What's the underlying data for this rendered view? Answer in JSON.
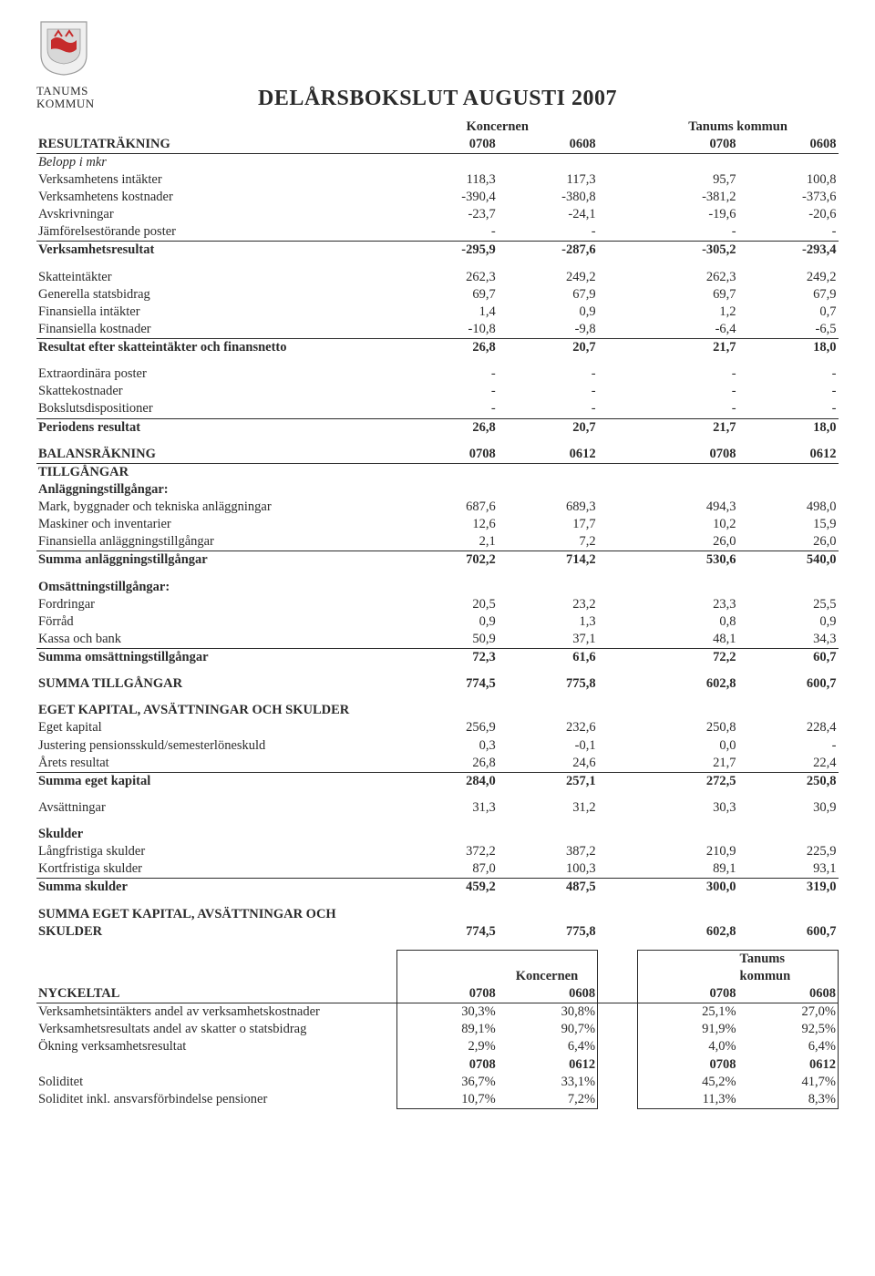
{
  "org": {
    "line1": "TANUMS",
    "line2": "KOMMUN"
  },
  "title": "DELÅRSBOKSLUT AUGUSTI 2007",
  "group_headers": {
    "left": "Koncernen",
    "right": "Tanums kommun"
  },
  "resultat": {
    "heading": "RESULTATRÄKNING",
    "periods": [
      "0708",
      "0608",
      "0708",
      "0608"
    ],
    "sub": "Belopp i mkr",
    "rows": [
      {
        "l": "Verksamhetens intäkter",
        "v": [
          "118,3",
          "117,3",
          "95,7",
          "100,8"
        ]
      },
      {
        "l": "Verksamhetens kostnader",
        "v": [
          "-390,4",
          "-380,8",
          "-381,2",
          "-373,6"
        ]
      },
      {
        "l": "Avskrivningar",
        "v": [
          "-23,7",
          "-24,1",
          "-19,6",
          "-20,6"
        ]
      },
      {
        "l": "Jämförelsestörande poster",
        "v": [
          "-",
          "-",
          "-",
          "-"
        ],
        "uline": true
      },
      {
        "l": "Verksamhetsresultat",
        "v": [
          "-295,9",
          "-287,6",
          "-305,2",
          "-293,4"
        ],
        "bold": true
      }
    ],
    "rows2": [
      {
        "l": "Skatteintäkter",
        "v": [
          "262,3",
          "249,2",
          "262,3",
          "249,2"
        ]
      },
      {
        "l": "Generella statsbidrag",
        "v": [
          "69,7",
          "67,9",
          "69,7",
          "67,9"
        ]
      },
      {
        "l": "Finansiella intäkter",
        "v": [
          "1,4",
          "0,9",
          "1,2",
          "0,7"
        ]
      },
      {
        "l": "Finansiella kostnader",
        "v": [
          "-10,8",
          "-9,8",
          "-6,4",
          "-6,5"
        ],
        "uline": true
      },
      {
        "l": "Resultat efter skatteintäkter och finansnetto",
        "v": [
          "26,8",
          "20,7",
          "21,7",
          "18,0"
        ],
        "bold": true
      }
    ],
    "rows3": [
      {
        "l": "Extraordinära poster",
        "v": [
          "-",
          "-",
          "-",
          "-"
        ]
      },
      {
        "l": "Skattekostnader",
        "v": [
          "-",
          "-",
          "-",
          "-"
        ]
      },
      {
        "l": "Bokslutsdispositioner",
        "v": [
          "-",
          "-",
          "-",
          "-"
        ],
        "uline": true
      },
      {
        "l": "Periodens resultat",
        "v": [
          "26,8",
          "20,7",
          "21,7",
          "18,0"
        ],
        "bold": true
      }
    ]
  },
  "balans": {
    "heading": "BALANSRÄKNING",
    "periods": [
      "0708",
      "0612",
      "0708",
      "0612"
    ],
    "assets_heading": "TILLGÅNGAR",
    "anl_heading": "Anläggningstillgångar:",
    "anl": [
      {
        "l": "Mark, byggnader och tekniska anläggningar",
        "v": [
          "687,6",
          "689,3",
          "494,3",
          "498,0"
        ]
      },
      {
        "l": "Maskiner och inventarier",
        "v": [
          "12,6",
          "17,7",
          "10,2",
          "15,9"
        ]
      },
      {
        "l": "Finansiella anläggningstillgångar",
        "v": [
          "2,1",
          "7,2",
          "26,0",
          "26,0"
        ],
        "uline": true
      },
      {
        "l": "Summa anläggningstillgångar",
        "v": [
          "702,2",
          "714,2",
          "530,6",
          "540,0"
        ],
        "bold": true
      }
    ],
    "oms_heading": "Omsättningstillgångar:",
    "oms": [
      {
        "l": "Fordringar",
        "v": [
          "20,5",
          "23,2",
          "23,3",
          "25,5"
        ]
      },
      {
        "l": "Förråd",
        "v": [
          "0,9",
          "1,3",
          "0,8",
          "0,9"
        ]
      },
      {
        "l": "Kassa och bank",
        "v": [
          "50,9",
          "37,1",
          "48,1",
          "34,3"
        ],
        "uline": true
      },
      {
        "l": "Summa omsättningstillgångar",
        "v": [
          "72,3",
          "61,6",
          "72,2",
          "60,7"
        ],
        "bold": true
      }
    ],
    "total_assets": {
      "l": "SUMMA TILLGÅNGAR",
      "v": [
        "774,5",
        "775,8",
        "602,8",
        "600,7"
      ],
      "bold": true
    },
    "ek_heading": "EGET KAPITAL, AVSÄTTNINGAR OCH SKULDER",
    "ek": [
      {
        "l": "Eget kapital",
        "v": [
          "256,9",
          "232,6",
          "250,8",
          "228,4"
        ]
      },
      {
        "l": "Justering pensionsskuld/semesterlöneskuld",
        "v": [
          "0,3",
          "-0,1",
          "0,0",
          "-"
        ]
      },
      {
        "l": "Årets resultat",
        "v": [
          "26,8",
          "24,6",
          "21,7",
          "22,4"
        ],
        "uline": true
      },
      {
        "l": "Summa eget kapital",
        "v": [
          "284,0",
          "257,1",
          "272,5",
          "250,8"
        ],
        "bold": true
      }
    ],
    "avs": {
      "l": "Avsättningar",
      "v": [
        "31,3",
        "31,2",
        "30,3",
        "30,9"
      ]
    },
    "sk_heading": "Skulder",
    "sk": [
      {
        "l": "Långfristiga skulder",
        "v": [
          "372,2",
          "387,2",
          "210,9",
          "225,9"
        ]
      },
      {
        "l": "Kortfristiga skulder",
        "v": [
          "87,0",
          "100,3",
          "89,1",
          "93,1"
        ],
        "uline": true
      },
      {
        "l": "Summa skulder",
        "v": [
          "459,2",
          "487,5",
          "300,0",
          "319,0"
        ],
        "bold": true
      }
    ],
    "total_ek": {
      "l": "SUMMA EGET KAPITAL, AVSÄTTNINGAR OCH SKULDER",
      "v": [
        "774,5",
        "775,8",
        "602,8",
        "600,7"
      ],
      "bold": true
    }
  },
  "nyckel": {
    "heading": "NYCKELTAL",
    "group_headers": {
      "left": "Koncernen",
      "right": "Tanums kommun"
    },
    "periods": [
      "0708",
      "0608",
      "0708",
      "0608"
    ],
    "rows": [
      {
        "l": "Verksamhetsintäkters andel av verksamhetskostnader",
        "v": [
          "30,3%",
          "30,8%",
          "25,1%",
          "27,0%"
        ]
      },
      {
        "l": "Verksamhetsresultats andel av skatter o statsbidrag",
        "v": [
          "89,1%",
          "90,7%",
          "91,9%",
          "92,5%"
        ]
      },
      {
        "l": "Ökning verksamhetsresultat",
        "v": [
          "2,9%",
          "6,4%",
          "4,0%",
          "6,4%"
        ]
      }
    ],
    "periods2": [
      "0708",
      "0612",
      "0708",
      "0612"
    ],
    "rows2": [
      {
        "l": "Soliditet",
        "v": [
          "36,7%",
          "33,1%",
          "45,2%",
          "41,7%"
        ]
      },
      {
        "l": "Soliditet inkl. ansvarsförbindelse pensioner",
        "v": [
          "10,7%",
          "7,2%",
          "11,3%",
          "8,3%"
        ]
      }
    ]
  },
  "colors": {
    "text": "#2b2b2b",
    "crest_shield": "#f2f2f2",
    "crest_red": "#c62b2b",
    "crest_border": "#8a8a8a"
  }
}
